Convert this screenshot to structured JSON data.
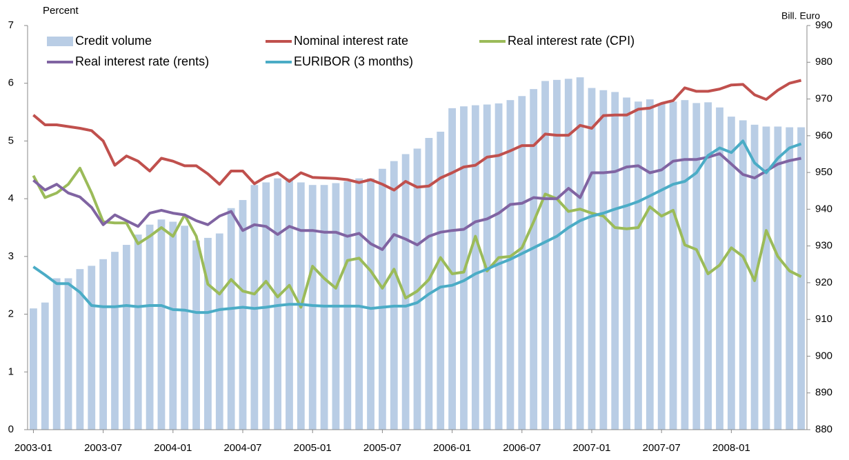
{
  "chart_data": {
    "type": "bar_line",
    "y_label": "Percent",
    "y2_label": "Bill. Euro",
    "categories": [
      "2003-01",
      null,
      null,
      null,
      null,
      null,
      "2003-07",
      null,
      null,
      null,
      null,
      null,
      "2004-01",
      null,
      null,
      null,
      null,
      null,
      "2004-07",
      null,
      null,
      null,
      null,
      null,
      "2005-01",
      null,
      null,
      null,
      null,
      null,
      "2005-07",
      null,
      null,
      null,
      null,
      null,
      "2006-01",
      null,
      null,
      null,
      null,
      null,
      "2006-07",
      null,
      null,
      null,
      null,
      null,
      "2007-01",
      null,
      null,
      null,
      null,
      null,
      "2007-07",
      null,
      null,
      null,
      null,
      null,
      "2008-01",
      null,
      null,
      null,
      null,
      null,
      null
    ],
    "ylim": [
      0,
      7
    ],
    "yticks": [
      0,
      1,
      2,
      3,
      4,
      5,
      6,
      7
    ],
    "y2lim": [
      880,
      990
    ],
    "y2ticks": [
      880,
      890,
      900,
      910,
      920,
      930,
      940,
      950,
      960,
      970,
      980,
      990
    ],
    "series": [
      {
        "name": "Credit volume",
        "type": "bar",
        "axis": "y2",
        "color": "#b9cde5",
        "values": [
          913.0,
          914.6,
          921.2,
          921.2,
          923.7,
          924.6,
          926.4,
          928.4,
          930.3,
          933.1,
          935.8,
          937.2,
          936.6,
          935.5,
          931.5,
          932.2,
          933.4,
          940.3,
          942.5,
          946.6,
          947.3,
          948.4,
          948.4,
          947.3,
          946.6,
          946.6,
          947.1,
          947.6,
          948.4,
          948.4,
          951.0,
          953.1,
          955.0,
          956.5,
          959.4,
          961.1,
          967.5,
          968.0,
          968.3,
          968.5,
          968.8,
          969.7,
          970.8,
          972.7,
          974.9,
          975.2,
          975.5,
          975.9,
          973.0,
          972.4,
          971.9,
          970.4,
          969.3,
          969.9,
          968.8,
          969.3,
          969.7,
          968.9,
          969.1,
          967.7,
          965.2,
          964.2,
          963.0,
          962.5,
          962.5,
          962.3,
          962.3
        ]
      },
      {
        "name": "Nominal interest rate",
        "type": "line",
        "color": "#c0504d",
        "values": [
          5.45,
          5.28,
          5.28,
          5.25,
          5.22,
          5.18,
          5.0,
          4.58,
          4.74,
          4.65,
          4.48,
          4.7,
          4.65,
          4.57,
          4.57,
          4.43,
          4.25,
          4.48,
          4.48,
          4.26,
          4.38,
          4.45,
          4.3,
          4.45,
          4.37,
          4.36,
          4.35,
          4.33,
          4.28,
          4.33,
          4.25,
          4.15,
          4.3,
          4.2,
          4.22,
          4.36,
          4.45,
          4.55,
          4.58,
          4.72,
          4.75,
          4.83,
          4.92,
          4.92,
          5.12,
          5.1,
          5.1,
          5.27,
          5.22,
          5.44,
          5.45,
          5.45,
          5.55,
          5.57,
          5.65,
          5.7,
          5.92,
          5.86,
          5.86,
          5.9,
          5.97,
          5.98,
          5.8,
          5.72,
          5.88,
          6.0,
          6.05
        ]
      },
      {
        "name": "Real interest rate (CPI)",
        "type": "line",
        "color": "#9bbb59",
        "values": [
          4.4,
          4.02,
          4.1,
          4.25,
          4.53,
          4.1,
          3.6,
          3.58,
          3.58,
          3.22,
          3.35,
          3.5,
          3.35,
          3.72,
          3.35,
          2.52,
          2.35,
          2.6,
          2.4,
          2.35,
          2.57,
          2.3,
          2.5,
          2.12,
          2.83,
          2.62,
          2.45,
          2.93,
          2.97,
          2.75,
          2.45,
          2.78,
          2.28,
          2.4,
          2.6,
          2.98,
          2.7,
          2.73,
          3.35,
          2.75,
          2.98,
          3.0,
          3.15,
          3.6,
          4.08,
          4.0,
          3.78,
          3.82,
          3.75,
          3.7,
          3.5,
          3.48,
          3.5,
          3.86,
          3.7,
          3.8,
          3.2,
          3.12,
          2.7,
          2.85,
          3.15,
          3.0,
          2.58,
          3.45,
          3.0,
          2.75,
          2.65
        ]
      },
      {
        "name": "Real interest rate (rents)",
        "type": "line",
        "color": "#8064a2",
        "values": [
          4.32,
          4.15,
          4.25,
          4.1,
          4.03,
          3.85,
          3.55,
          3.72,
          3.62,
          3.52,
          3.75,
          3.8,
          3.75,
          3.72,
          3.62,
          3.55,
          3.7,
          3.78,
          3.45,
          3.55,
          3.52,
          3.38,
          3.52,
          3.45,
          3.45,
          3.42,
          3.42,
          3.35,
          3.4,
          3.22,
          3.12,
          3.38,
          3.3,
          3.2,
          3.35,
          3.42,
          3.45,
          3.47,
          3.6,
          3.65,
          3.75,
          3.9,
          3.92,
          4.02,
          4.0,
          4.0,
          4.18,
          4.02,
          4.45,
          4.45,
          4.47,
          4.55,
          4.57,
          4.45,
          4.5,
          4.65,
          4.68,
          4.68,
          4.72,
          4.78,
          4.6,
          4.42,
          4.36,
          4.48,
          4.6,
          4.66,
          4.7
        ]
      },
      {
        "name": "EURIBOR (3 months)",
        "type": "line",
        "color": "#4bacc6",
        "values": [
          2.82,
          2.68,
          2.53,
          2.53,
          2.38,
          2.15,
          2.13,
          2.13,
          2.15,
          2.13,
          2.15,
          2.15,
          2.08,
          2.07,
          2.03,
          2.03,
          2.08,
          2.1,
          2.12,
          2.1,
          2.12,
          2.15,
          2.17,
          2.17,
          2.15,
          2.14,
          2.14,
          2.14,
          2.14,
          2.1,
          2.12,
          2.14,
          2.14,
          2.2,
          2.35,
          2.47,
          2.5,
          2.58,
          2.7,
          2.78,
          2.87,
          2.95,
          3.05,
          3.15,
          3.25,
          3.35,
          3.5,
          3.62,
          3.7,
          3.75,
          3.82,
          3.88,
          3.95,
          4.05,
          4.15,
          4.25,
          4.3,
          4.45,
          4.75,
          4.88,
          4.8,
          5.0,
          4.62,
          4.45,
          4.7,
          4.88,
          4.95
        ]
      }
    ]
  }
}
